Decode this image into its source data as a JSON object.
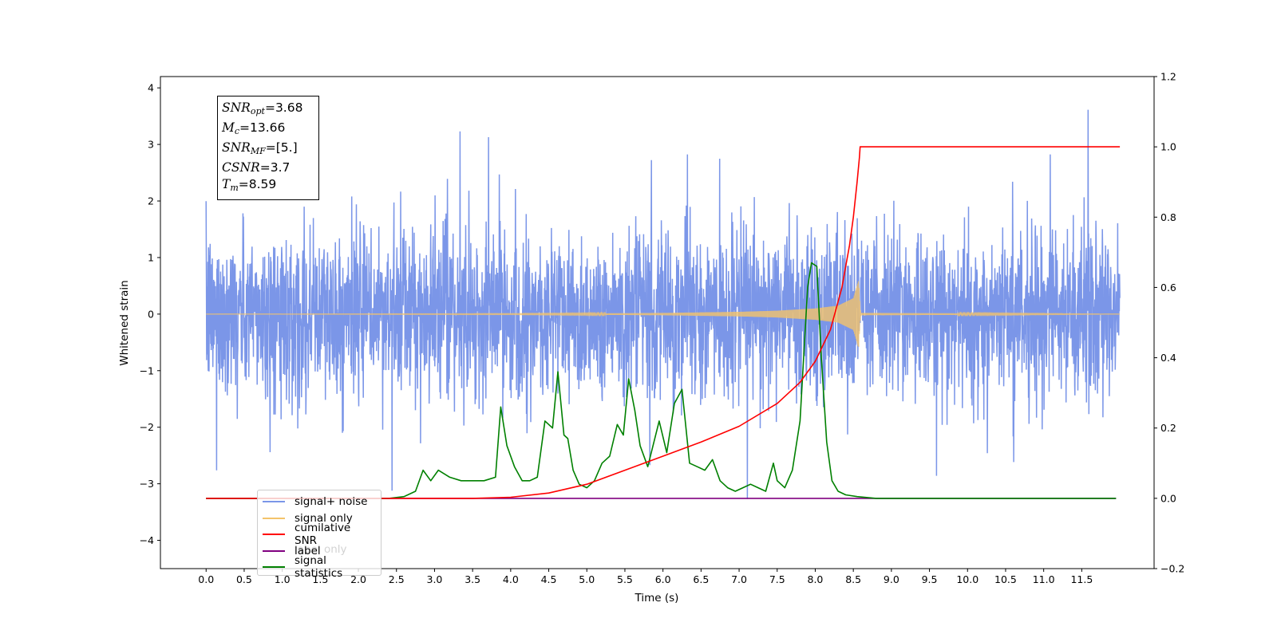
{
  "chart_data": {
    "type": "line",
    "xlabel": "Time (s)",
    "ylabel": "Whitened strain",
    "xlim": [
      -0.6,
      12.45
    ],
    "ylim": [
      -4.5,
      4.2
    ],
    "y2lim": [
      -0.2,
      1.2
    ],
    "x_ticks": [
      0.0,
      0.5,
      1.0,
      1.5,
      2.0,
      2.5,
      3.0,
      3.5,
      4.0,
      4.5,
      5.0,
      5.5,
      6.0,
      6.5,
      7.0,
      7.5,
      8.0,
      8.5,
      9.0,
      9.5,
      10.0,
      10.5,
      11.0,
      11.5
    ],
    "x_tick_labels": [
      "0.0",
      "0.5",
      "1.0",
      "1.5",
      "2.0",
      "2.5",
      "3.0",
      "3.5",
      "4.0",
      "4.5",
      "5.0",
      "5.5",
      "6.0",
      "6.5",
      "7.0",
      "7.5",
      "8.0",
      "8.5",
      "9.0",
      "9.5",
      "10.0",
      "10.5",
      "11.0",
      "11.5"
    ],
    "y_ticks": [
      -4,
      -3,
      -2,
      -1,
      0,
      1,
      2,
      3,
      4
    ],
    "y_tick_labels": [
      "−4",
      "−3",
      "−2",
      "−1",
      "0",
      "1",
      "2",
      "3",
      "4"
    ],
    "y2_ticks": [
      -0.2,
      0.0,
      0.2,
      0.4,
      0.6,
      0.8,
      1.0,
      1.2
    ],
    "y2_tick_labels": [
      "−0.2",
      "0.0",
      "0.2",
      "0.4",
      "0.6",
      "0.8",
      "1.0",
      "1.2"
    ],
    "grid": false,
    "legend_position": "lower-left",
    "annotation": [
      {
        "sym": "SNR",
        "sub": "opt",
        "val": "=3.68"
      },
      {
        "sym": "M",
        "sub": "c",
        "val": "=13.66"
      },
      {
        "sym": "SNR",
        "sub": "MF",
        "val": "=[5.]"
      },
      {
        "sym": "CSNR",
        "sub": "",
        "val": "=3.7"
      },
      {
        "sym": "T",
        "sub": "m",
        "val": "=8.59"
      }
    ],
    "noise": {
      "t_start": 0.0,
      "t_end": 12.0,
      "band_low": -1.5,
      "band_high": 1.5,
      "spike_max": 3.8,
      "spike_min": -3.78,
      "axis": "left"
    },
    "series": [
      {
        "name": "signal+ noise",
        "color": "#7b96e8",
        "axis": "left",
        "note": "dense noise trace, drawn from noise parameters"
      },
      {
        "name": "signal only",
        "color": "#f4c36a",
        "axis": "left",
        "envelope_t": [
          0.0,
          4.0,
          5.0,
          6.0,
          7.0,
          7.5,
          8.0,
          8.3,
          8.5,
          8.57,
          8.59,
          8.6,
          12.0
        ],
        "envelope_a": [
          0.0,
          0.005,
          0.01,
          0.02,
          0.04,
          0.06,
          0.1,
          0.15,
          0.28,
          0.6,
          0.1,
          0.02,
          0.0
        ]
      },
      {
        "name": "cumilative SNR",
        "color": "#ff0000",
        "axis": "right",
        "x": [
          0.0,
          3.0,
          3.5,
          4.0,
          4.5,
          5.0,
          5.5,
          6.0,
          6.5,
          7.0,
          7.5,
          7.8,
          8.0,
          8.2,
          8.35,
          8.45,
          8.5,
          8.55,
          8.58,
          8.59,
          12.0
        ],
        "y": [
          0.0,
          0.0,
          0.0,
          0.003,
          0.015,
          0.04,
          0.08,
          0.12,
          0.16,
          0.205,
          0.27,
          0.33,
          0.39,
          0.48,
          0.6,
          0.72,
          0.8,
          0.9,
          0.97,
          1.0,
          1.0
        ]
      },
      {
        "name": "label",
        "color": "#800080",
        "axis": "right",
        "x": [
          0.0,
          11.95
        ],
        "y": [
          0.0,
          0.0
        ]
      },
      {
        "name": "signal statistics",
        "color": "#008000",
        "axis": "right",
        "x": [
          0.0,
          2.4,
          2.6,
          2.75,
          2.85,
          2.95,
          3.05,
          3.2,
          3.35,
          3.5,
          3.65,
          3.8,
          3.87,
          3.95,
          4.05,
          4.15,
          4.25,
          4.35,
          4.45,
          4.55,
          4.62,
          4.7,
          4.75,
          4.82,
          4.9,
          5.0,
          5.1,
          5.2,
          5.3,
          5.4,
          5.48,
          5.55,
          5.63,
          5.7,
          5.8,
          5.95,
          6.05,
          6.15,
          6.25,
          6.35,
          6.45,
          6.55,
          6.65,
          6.75,
          6.85,
          6.95,
          7.05,
          7.15,
          7.25,
          7.35,
          7.45,
          7.5,
          7.6,
          7.7,
          7.8,
          7.9,
          7.95,
          8.02,
          8.08,
          8.15,
          8.22,
          8.3,
          8.4,
          8.55,
          8.8,
          11.95
        ],
        "y": [
          0.0,
          0.0,
          0.005,
          0.02,
          0.08,
          0.05,
          0.08,
          0.06,
          0.05,
          0.05,
          0.05,
          0.06,
          0.26,
          0.15,
          0.09,
          0.05,
          0.05,
          0.06,
          0.22,
          0.2,
          0.36,
          0.18,
          0.17,
          0.08,
          0.04,
          0.03,
          0.05,
          0.1,
          0.12,
          0.21,
          0.18,
          0.34,
          0.25,
          0.15,
          0.09,
          0.22,
          0.13,
          0.27,
          0.31,
          0.1,
          0.09,
          0.08,
          0.11,
          0.05,
          0.03,
          0.02,
          0.03,
          0.04,
          0.03,
          0.02,
          0.1,
          0.05,
          0.03,
          0.08,
          0.22,
          0.6,
          0.67,
          0.66,
          0.4,
          0.16,
          0.05,
          0.02,
          0.01,
          0.005,
          0.0,
          0.0
        ]
      }
    ],
    "legend": [
      {
        "label": "signal+ noise",
        "color": "#7b96e8"
      },
      {
        "label": "signal only",
        "color": "#f4c36a"
      },
      {
        "label": "cumilative SNR",
        "color": "#ff0000"
      },
      {
        "label": "label",
        "color": "#800080"
      },
      {
        "label": "signal statistics",
        "color": "#008000"
      }
    ],
    "ghost_legend_text": "label only"
  }
}
